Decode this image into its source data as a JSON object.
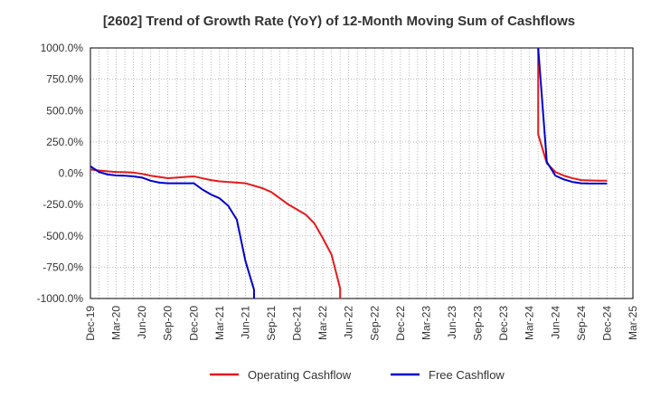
{
  "chart_data": {
    "type": "line",
    "title": "[2602]  Trend of Growth Rate (YoY) of 12-Month Moving Sum of Cashflows",
    "xlabel": "",
    "ylabel": "",
    "ylim": [
      -1000,
      1000
    ],
    "y_ticks": [
      "1000.0%",
      "750.0%",
      "500.0%",
      "250.0%",
      "0.0%",
      "-250.0%",
      "-500.0%",
      "-750.0%",
      "-1000.0%"
    ],
    "y_tick_values": [
      1000,
      750,
      500,
      250,
      0,
      -250,
      -500,
      -750,
      -1000
    ],
    "x_ticks": [
      "Dec-19",
      "Mar-20",
      "Jun-20",
      "Sep-20",
      "Dec-20",
      "Mar-21",
      "Jun-21",
      "Sep-21",
      "Dec-21",
      "Mar-22",
      "Jun-22",
      "Sep-22",
      "Dec-22",
      "Mar-23",
      "Jun-23",
      "Sep-23",
      "Dec-23",
      "Mar-24",
      "Jun-24",
      "Sep-24",
      "Dec-24",
      "Mar-25"
    ],
    "grid": true,
    "legend_position": "bottom",
    "series": [
      {
        "name": "Operating Cashflow",
        "color": "#e41a1c",
        "points": [
          [
            "Dec-19",
            30
          ],
          [
            "Jan-20",
            22
          ],
          [
            "Feb-20",
            15
          ],
          [
            "Mar-20",
            10
          ],
          [
            "Apr-20",
            8
          ],
          [
            "May-20",
            5
          ],
          [
            "Jun-20",
            -5
          ],
          [
            "Jul-20",
            -20
          ],
          [
            "Aug-20",
            -30
          ],
          [
            "Sep-20",
            -40
          ],
          [
            "Oct-20",
            -35
          ],
          [
            "Nov-20",
            -30
          ],
          [
            "Dec-20",
            -25
          ],
          [
            "Jan-21",
            -40
          ],
          [
            "Feb-21",
            -55
          ],
          [
            "Mar-21",
            -65
          ],
          [
            "Apr-21",
            -70
          ],
          [
            "May-21",
            -75
          ],
          [
            "Jun-21",
            -80
          ],
          [
            "Jul-21",
            -100
          ],
          [
            "Aug-21",
            -120
          ],
          [
            "Sep-21",
            -150
          ],
          [
            "Oct-21",
            -200
          ],
          [
            "Nov-21",
            -250
          ],
          [
            "Dec-21",
            -290
          ],
          [
            "Jan-22",
            -330
          ],
          [
            "Feb-22",
            -400
          ],
          [
            "Mar-22",
            -520
          ],
          [
            "Apr-22",
            -650
          ],
          [
            "May-22",
            -920
          ],
          [
            "May-22",
            -1000
          ]
        ]
      },
      {
        "name": "Free Cashflow",
        "color": "#0000cc",
        "points": [
          [
            "Dec-19",
            55
          ],
          [
            "Jan-20",
            10
          ],
          [
            "Feb-20",
            -10
          ],
          [
            "Mar-20",
            -18
          ],
          [
            "Apr-20",
            -20
          ],
          [
            "May-20",
            -25
          ],
          [
            "Jun-20",
            -35
          ],
          [
            "Jul-20",
            -60
          ],
          [
            "Aug-20",
            -75
          ],
          [
            "Sep-20",
            -80
          ],
          [
            "Oct-20",
            -80
          ],
          [
            "Nov-20",
            -80
          ],
          [
            "Dec-20",
            -80
          ],
          [
            "Jan-21",
            -130
          ],
          [
            "Feb-21",
            -170
          ],
          [
            "Mar-21",
            -200
          ],
          [
            "Apr-21",
            -260
          ],
          [
            "May-21",
            -370
          ],
          [
            "Jun-21",
            -700
          ],
          [
            "Jul-21",
            -930
          ],
          [
            "Jul-21",
            -1000
          ]
        ]
      },
      {
        "name": "Operating Cashflow",
        "color": "#e41a1c",
        "continuation": true,
        "points": [
          [
            "Apr-24",
            1000
          ],
          [
            "Apr-24",
            310
          ],
          [
            "May-24",
            80
          ],
          [
            "Jun-24",
            10
          ],
          [
            "Jul-24",
            -20
          ],
          [
            "Aug-24",
            -40
          ],
          [
            "Sep-24",
            -55
          ],
          [
            "Oct-24",
            -58
          ],
          [
            "Nov-24",
            -60
          ],
          [
            "Dec-24",
            -60
          ]
        ]
      },
      {
        "name": "Free Cashflow",
        "color": "#0000cc",
        "continuation": true,
        "points": [
          [
            "Apr-24",
            1000
          ],
          [
            "May-24",
            90
          ],
          [
            "Jun-24",
            -20
          ],
          [
            "Jul-24",
            -50
          ],
          [
            "Aug-24",
            -70
          ],
          [
            "Sep-24",
            -80
          ],
          [
            "Oct-24",
            -82
          ],
          [
            "Nov-24",
            -82
          ],
          [
            "Dec-24",
            -82
          ]
        ]
      }
    ],
    "legend": [
      {
        "name": "Operating Cashflow",
        "color": "#e41a1c"
      },
      {
        "name": "Free Cashflow",
        "color": "#0000cc"
      }
    ]
  }
}
